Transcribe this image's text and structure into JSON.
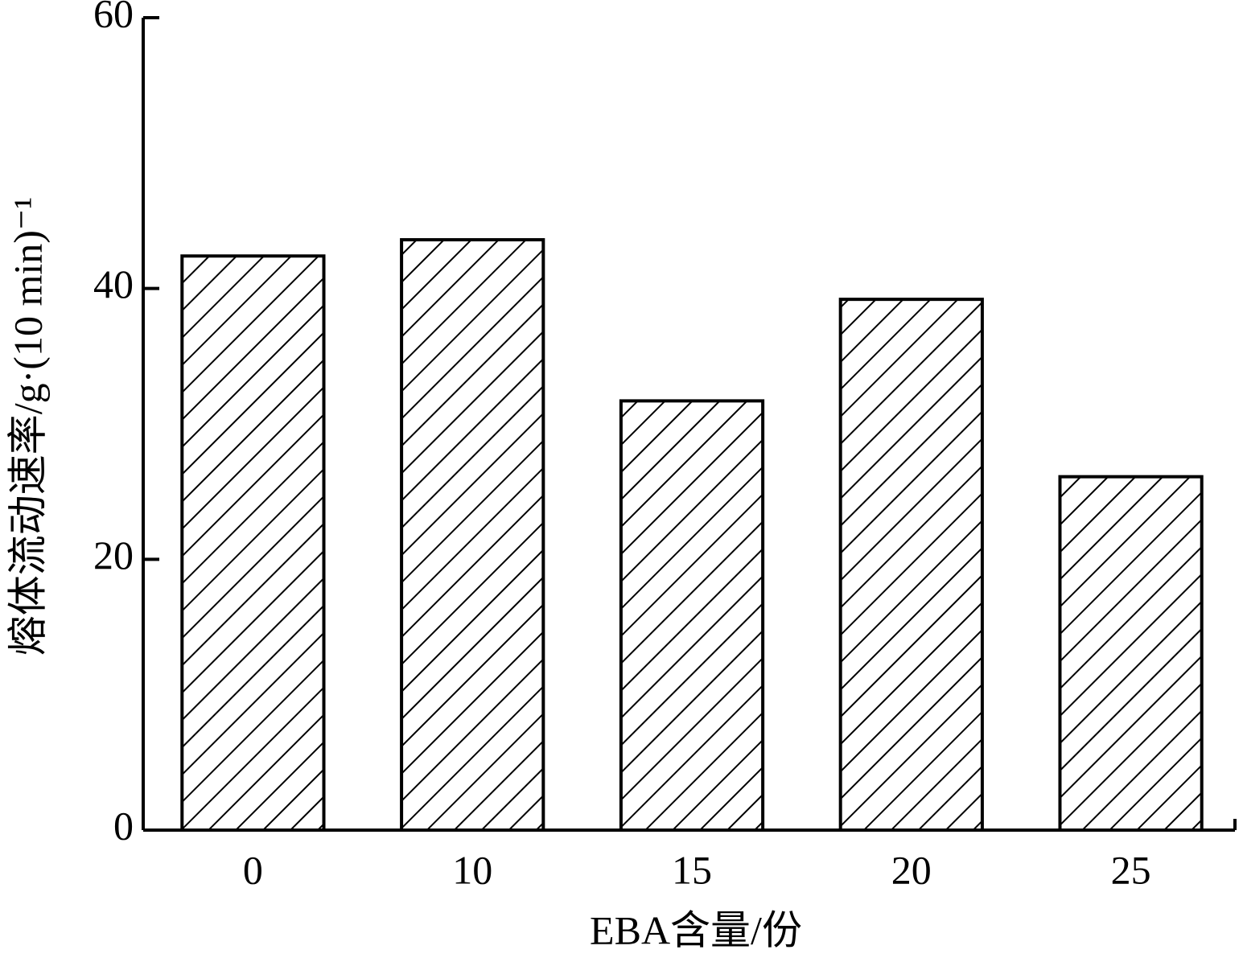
{
  "chart_data": {
    "type": "bar",
    "x_label": "EBA含量/份",
    "y_label": "熔体流动速率/g·(10 min)⁻¹",
    "categories": [
      "0",
      "10",
      "15",
      "20",
      "25"
    ],
    "values": [
      42.4,
      43.6,
      31.7,
      39.2,
      26.1
    ],
    "color": "#000000",
    "hatch": "diagonal",
    "ylim": [
      0,
      60
    ],
    "yticks": [
      0,
      20,
      40,
      60
    ]
  }
}
